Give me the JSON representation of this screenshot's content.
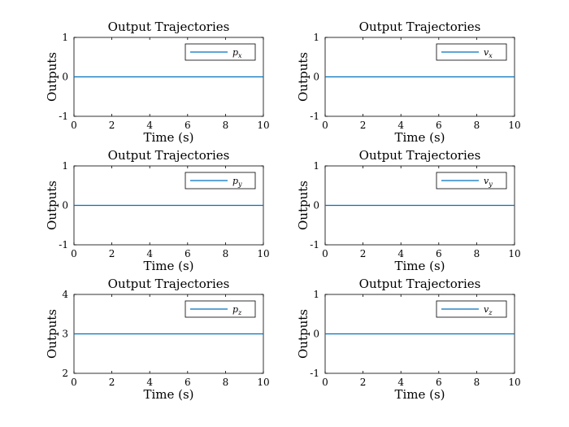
{
  "chart_data": [
    {
      "type": "line",
      "title": "Output Trajectories",
      "xlabel": "Time (s)",
      "ylabel": "Outputs",
      "xlim": [
        0,
        10
      ],
      "ylim": [
        -1,
        1
      ],
      "xticks": [
        0,
        2,
        4,
        6,
        8,
        10
      ],
      "yticks": [
        -1,
        0,
        1
      ],
      "legend_position": "top-right",
      "grid": false,
      "series": [
        {
          "name": "p_x",
          "base": "p",
          "sub": "x",
          "color": "#0072bd",
          "x": [
            0,
            10
          ],
          "y": [
            0,
            0
          ]
        }
      ]
    },
    {
      "type": "line",
      "title": "Output Trajectories",
      "xlabel": "Time (s)",
      "ylabel": "Outputs",
      "xlim": [
        0,
        10
      ],
      "ylim": [
        -1,
        1
      ],
      "xticks": [
        0,
        2,
        4,
        6,
        8,
        10
      ],
      "yticks": [
        -1,
        0,
        1
      ],
      "legend_position": "top-right",
      "grid": false,
      "series": [
        {
          "name": "v_x",
          "base": "v",
          "sub": "x",
          "color": "#0072bd",
          "x": [
            0,
            10
          ],
          "y": [
            0,
            0
          ]
        }
      ]
    },
    {
      "type": "line",
      "title": "Output Trajectories",
      "xlabel": "Time (s)",
      "ylabel": "Outputs",
      "xlim": [
        0,
        10
      ],
      "ylim": [
        -1,
        1
      ],
      "xticks": [
        0,
        2,
        4,
        6,
        8,
        10
      ],
      "yticks": [
        -1,
        0,
        1
      ],
      "legend_position": "top-right",
      "grid": false,
      "series": [
        {
          "name": "p_y",
          "base": "p",
          "sub": "y",
          "color": "#0072bd",
          "x": [
            0,
            10
          ],
          "y": [
            0,
            0
          ]
        }
      ]
    },
    {
      "type": "line",
      "title": "Output Trajectories",
      "xlabel": "Time (s)",
      "ylabel": "Outputs",
      "xlim": [
        0,
        10
      ],
      "ylim": [
        -1,
        1
      ],
      "xticks": [
        0,
        2,
        4,
        6,
        8,
        10
      ],
      "yticks": [
        -1,
        0,
        1
      ],
      "legend_position": "top-right",
      "grid": false,
      "series": [
        {
          "name": "v_y",
          "base": "v",
          "sub": "y",
          "color": "#0072bd",
          "x": [
            0,
            10
          ],
          "y": [
            0,
            0
          ]
        }
      ]
    },
    {
      "type": "line",
      "title": "Output Trajectories",
      "xlabel": "Time (s)",
      "ylabel": "Outputs",
      "xlim": [
        0,
        10
      ],
      "ylim": [
        2,
        4
      ],
      "xticks": [
        0,
        2,
        4,
        6,
        8,
        10
      ],
      "yticks": [
        2,
        3,
        4
      ],
      "legend_position": "top-right",
      "grid": false,
      "series": [
        {
          "name": "p_z",
          "base": "p",
          "sub": "z",
          "color": "#0072bd",
          "x": [
            0,
            10
          ],
          "y": [
            3,
            3
          ]
        }
      ]
    },
    {
      "type": "line",
      "title": "Output Trajectories",
      "xlabel": "Time (s)",
      "ylabel": "Outputs",
      "xlim": [
        0,
        10
      ],
      "ylim": [
        -1,
        1
      ],
      "xticks": [
        0,
        2,
        4,
        6,
        8,
        10
      ],
      "yticks": [
        -1,
        0,
        1
      ],
      "legend_position": "top-right",
      "grid": false,
      "series": [
        {
          "name": "v_z",
          "base": "v",
          "sub": "z",
          "color": "#0072bd",
          "x": [
            0,
            10
          ],
          "y": [
            0,
            0
          ]
        }
      ]
    }
  ]
}
